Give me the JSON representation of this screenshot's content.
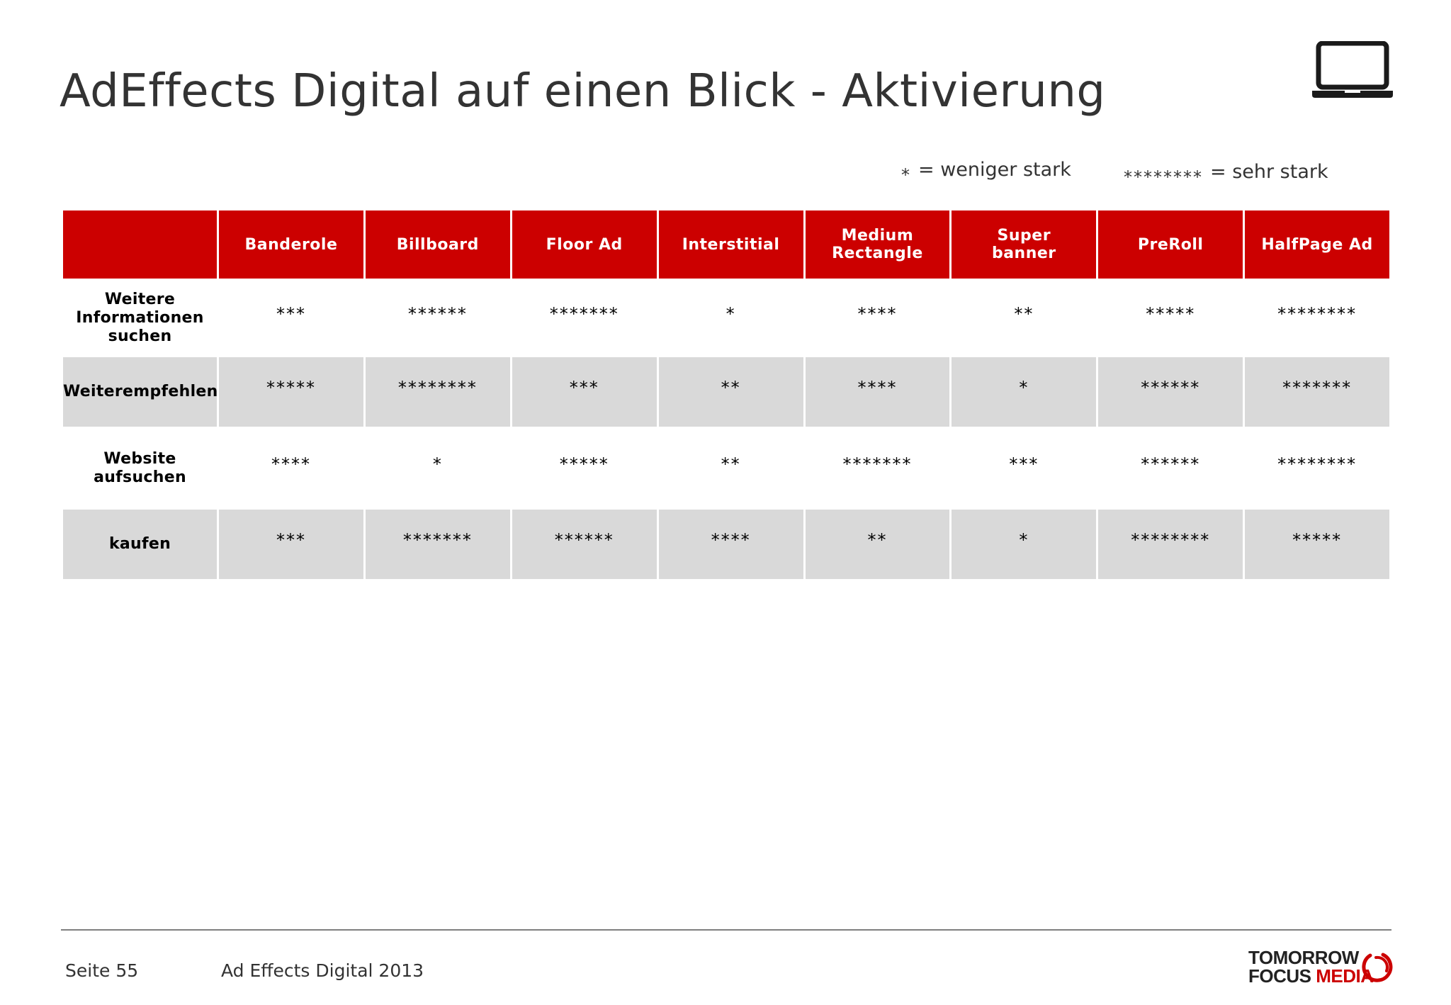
{
  "title": "AdEffects Digital auf einen Blick - Aktivierung",
  "legend": [
    {
      "stars": "*",
      "text": "= weniger stark"
    },
    {
      "stars": "********",
      "text": "= sehr stark"
    }
  ],
  "table": {
    "header_corner": "",
    "columns": [
      "Banderole",
      "Billboard",
      "Floor Ad",
      "Interstitial",
      "Medium Rectangle",
      "Super banner",
      "PreRoll",
      "HalfPage Ad"
    ],
    "rows": [
      {
        "label": "Weitere Informationen suchen",
        "cells": [
          "***",
          "******",
          "*******",
          "*",
          "****",
          "**",
          "*****",
          "********"
        ]
      },
      {
        "label": "Weiterempfehlen",
        "cells": [
          "*****",
          "********",
          "***",
          "**",
          "****",
          "*",
          "******",
          "*******"
        ]
      },
      {
        "label": "Website aufsuchen",
        "cells": [
          "****",
          "*",
          "*****",
          "**",
          "*******",
          "***",
          "******",
          "********"
        ]
      },
      {
        "label": "kaufen",
        "cells": [
          "***",
          "*******",
          "******",
          "****",
          "**",
          "*",
          "********",
          "*****"
        ]
      }
    ]
  },
  "footer": {
    "page": "Seite 55",
    "doc": "Ad Effects Digital 2013",
    "logo_line1": "TOMORROW",
    "logo_focus": "FOCUS",
    "logo_media": "MEDIA"
  },
  "icons": {
    "top_right": "laptop-icon",
    "logo_mark": "logo-ring-icon"
  },
  "colors": {
    "accent": "#cc0000",
    "shade": "#d9d9d9",
    "text": "#333333"
  }
}
